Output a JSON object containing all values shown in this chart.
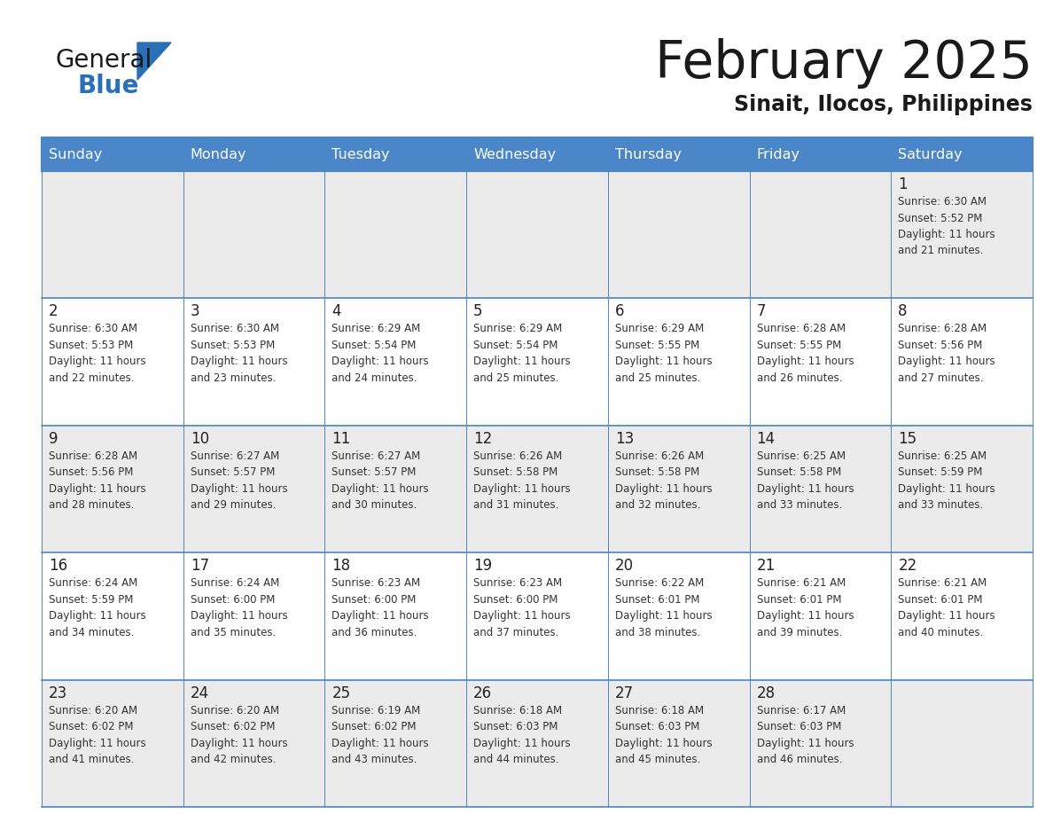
{
  "title": "February 2025",
  "subtitle": "Sinait, Ilocos, Philippines",
  "days_of_week": [
    "Sunday",
    "Monday",
    "Tuesday",
    "Wednesday",
    "Thursday",
    "Friday",
    "Saturday"
  ],
  "header_bg": "#4a86c8",
  "header_text": "#ffffff",
  "cell_bg_light": "#ebebeb",
  "cell_bg_white": "#ffffff",
  "border_color": "#4a86c8",
  "text_color": "#333333",
  "day_number_color": "#222222",
  "title_color": "#1a1a1a",
  "subtitle_color": "#1a1a1a",
  "logo_color_general": "#1a1a1a",
  "logo_color_blue": "#2a70b8",
  "logo_triangle_color": "#2a70b8",
  "calendar_data": [
    {
      "day": 1,
      "col": 6,
      "row": 0,
      "sunrise": "6:30 AM",
      "sunset": "5:52 PM",
      "daylight_min": "21"
    },
    {
      "day": 2,
      "col": 0,
      "row": 1,
      "sunrise": "6:30 AM",
      "sunset": "5:53 PM",
      "daylight_min": "22"
    },
    {
      "day": 3,
      "col": 1,
      "row": 1,
      "sunrise": "6:30 AM",
      "sunset": "5:53 PM",
      "daylight_min": "23"
    },
    {
      "day": 4,
      "col": 2,
      "row": 1,
      "sunrise": "6:29 AM",
      "sunset": "5:54 PM",
      "daylight_min": "24"
    },
    {
      "day": 5,
      "col": 3,
      "row": 1,
      "sunrise": "6:29 AM",
      "sunset": "5:54 PM",
      "daylight_min": "25"
    },
    {
      "day": 6,
      "col": 4,
      "row": 1,
      "sunrise": "6:29 AM",
      "sunset": "5:55 PM",
      "daylight_min": "25"
    },
    {
      "day": 7,
      "col": 5,
      "row": 1,
      "sunrise": "6:28 AM",
      "sunset": "5:55 PM",
      "daylight_min": "26"
    },
    {
      "day": 8,
      "col": 6,
      "row": 1,
      "sunrise": "6:28 AM",
      "sunset": "5:56 PM",
      "daylight_min": "27"
    },
    {
      "day": 9,
      "col": 0,
      "row": 2,
      "sunrise": "6:28 AM",
      "sunset": "5:56 PM",
      "daylight_min": "28"
    },
    {
      "day": 10,
      "col": 1,
      "row": 2,
      "sunrise": "6:27 AM",
      "sunset": "5:57 PM",
      "daylight_min": "29"
    },
    {
      "day": 11,
      "col": 2,
      "row": 2,
      "sunrise": "6:27 AM",
      "sunset": "5:57 PM",
      "daylight_min": "30"
    },
    {
      "day": 12,
      "col": 3,
      "row": 2,
      "sunrise": "6:26 AM",
      "sunset": "5:58 PM",
      "daylight_min": "31"
    },
    {
      "day": 13,
      "col": 4,
      "row": 2,
      "sunrise": "6:26 AM",
      "sunset": "5:58 PM",
      "daylight_min": "32"
    },
    {
      "day": 14,
      "col": 5,
      "row": 2,
      "sunrise": "6:25 AM",
      "sunset": "5:58 PM",
      "daylight_min": "33"
    },
    {
      "day": 15,
      "col": 6,
      "row": 2,
      "sunrise": "6:25 AM",
      "sunset": "5:59 PM",
      "daylight_min": "33"
    },
    {
      "day": 16,
      "col": 0,
      "row": 3,
      "sunrise": "6:24 AM",
      "sunset": "5:59 PM",
      "daylight_min": "34"
    },
    {
      "day": 17,
      "col": 1,
      "row": 3,
      "sunrise": "6:24 AM",
      "sunset": "6:00 PM",
      "daylight_min": "35"
    },
    {
      "day": 18,
      "col": 2,
      "row": 3,
      "sunrise": "6:23 AM",
      "sunset": "6:00 PM",
      "daylight_min": "36"
    },
    {
      "day": 19,
      "col": 3,
      "row": 3,
      "sunrise": "6:23 AM",
      "sunset": "6:00 PM",
      "daylight_min": "37"
    },
    {
      "day": 20,
      "col": 4,
      "row": 3,
      "sunrise": "6:22 AM",
      "sunset": "6:01 PM",
      "daylight_min": "38"
    },
    {
      "day": 21,
      "col": 5,
      "row": 3,
      "sunrise": "6:21 AM",
      "sunset": "6:01 PM",
      "daylight_min": "39"
    },
    {
      "day": 22,
      "col": 6,
      "row": 3,
      "sunrise": "6:21 AM",
      "sunset": "6:01 PM",
      "daylight_min": "40"
    },
    {
      "day": 23,
      "col": 0,
      "row": 4,
      "sunrise": "6:20 AM",
      "sunset": "6:02 PM",
      "daylight_min": "41"
    },
    {
      "day": 24,
      "col": 1,
      "row": 4,
      "sunrise": "6:20 AM",
      "sunset": "6:02 PM",
      "daylight_min": "42"
    },
    {
      "day": 25,
      "col": 2,
      "row": 4,
      "sunrise": "6:19 AM",
      "sunset": "6:02 PM",
      "daylight_min": "43"
    },
    {
      "day": 26,
      "col": 3,
      "row": 4,
      "sunrise": "6:18 AM",
      "sunset": "6:03 PM",
      "daylight_min": "44"
    },
    {
      "day": 27,
      "col": 4,
      "row": 4,
      "sunrise": "6:18 AM",
      "sunset": "6:03 PM",
      "daylight_min": "45"
    },
    {
      "day": 28,
      "col": 5,
      "row": 4,
      "sunrise": "6:17 AM",
      "sunset": "6:03 PM",
      "daylight_min": "46"
    }
  ]
}
